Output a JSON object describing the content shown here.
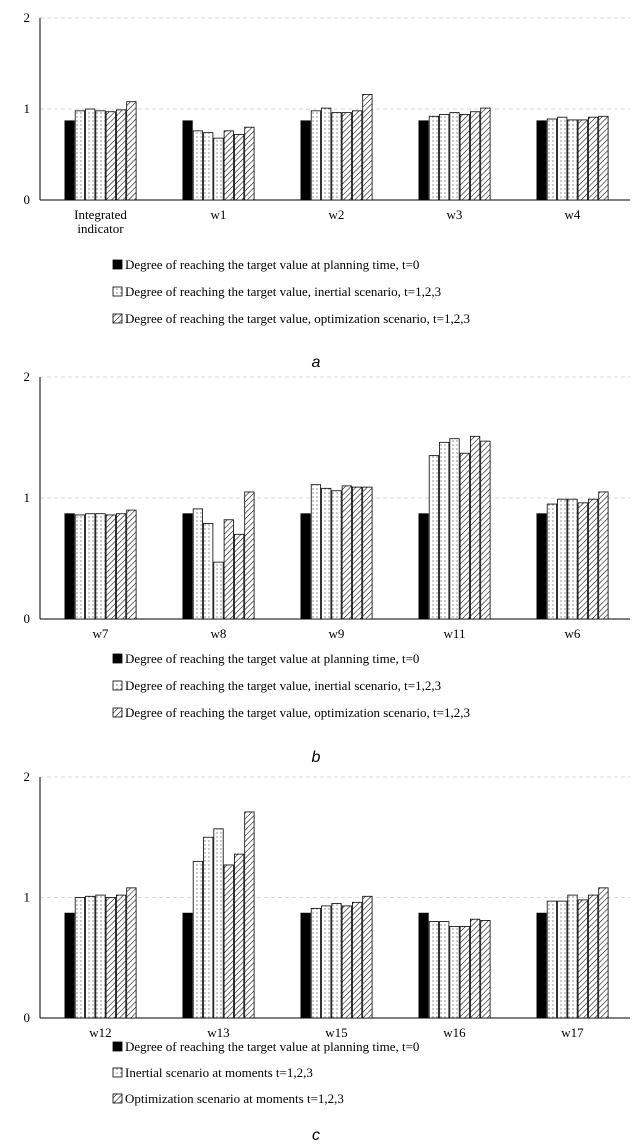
{
  "chart_data": [
    {
      "type": "bar",
      "panel_label": "a",
      "categories": [
        "Integrated indicator",
        "w1",
        "w2",
        "w3",
        "w4"
      ],
      "ylim": [
        0,
        2
      ],
      "yticks": [
        "0",
        "1",
        "2"
      ],
      "grid": true,
      "series": [
        {
          "name": "Degree of reaching the target value at planning time, t=0",
          "style": "solid",
          "values": [
            [
              0.87
            ],
            [
              0.87
            ],
            [
              0.87
            ],
            [
              0.87
            ],
            [
              0.87
            ]
          ]
        },
        {
          "name": "Degree of reaching the target value, inertial scenario,  t=1,2,3",
          "style": "dotted",
          "values": [
            [
              0.98,
              1.0,
              0.98
            ],
            [
              0.76,
              0.74,
              0.68
            ],
            [
              0.98,
              1.01,
              0.96
            ],
            [
              0.92,
              0.94,
              0.96
            ],
            [
              0.89,
              0.91,
              0.88
            ]
          ]
        },
        {
          "name": "Degree of reaching the target value, optimization scenario,  t=1,2,3",
          "style": "hatched",
          "values": [
            [
              0.97,
              0.99,
              1.08
            ],
            [
              0.76,
              0.72,
              0.8
            ],
            [
              0.96,
              0.98,
              1.16
            ],
            [
              0.94,
              0.97,
              1.01
            ],
            [
              0.88,
              0.91,
              0.92
            ]
          ]
        }
      ]
    },
    {
      "type": "bar",
      "panel_label": "b",
      "categories": [
        "w7",
        "w8",
        "w9",
        "w11",
        "w6"
      ],
      "ylim": [
        0,
        2
      ],
      "yticks": [
        "0",
        "1",
        "2"
      ],
      "grid": true,
      "series": [
        {
          "name": "Degree of reaching the target value at planning time, t=0",
          "style": "solid",
          "values": [
            [
              0.87
            ],
            [
              0.87
            ],
            [
              0.87
            ],
            [
              0.87
            ],
            [
              0.87
            ]
          ]
        },
        {
          "name": "Degree of reaching the target value, inertial scenario,  t=1,2,3",
          "style": "dotted",
          "values": [
            [
              0.86,
              0.87,
              0.87
            ],
            [
              0.91,
              0.79,
              0.47
            ],
            [
              1.11,
              1.08,
              1.06
            ],
            [
              1.35,
              1.46,
              1.49
            ],
            [
              0.95,
              0.99,
              0.99
            ]
          ]
        },
        {
          "name": "Degree of reaching the target value, optimization scenario,  t=1,2,3",
          "style": "hatched",
          "values": [
            [
              0.86,
              0.87,
              0.9
            ],
            [
              0.82,
              0.7,
              1.05
            ],
            [
              1.1,
              1.09,
              1.09
            ],
            [
              1.37,
              1.51,
              1.47
            ],
            [
              0.96,
              0.99,
              1.05
            ]
          ]
        }
      ]
    },
    {
      "type": "bar",
      "panel_label": "c",
      "categories": [
        "w12",
        "w13",
        "w15",
        "w16",
        "w17"
      ],
      "ylim": [
        0,
        2
      ],
      "yticks": [
        "0",
        "1",
        "2"
      ],
      "grid": true,
      "series": [
        {
          "name": "Degree of reaching the target value at planning time, t=0",
          "style": "solid",
          "values": [
            [
              0.87
            ],
            [
              0.87
            ],
            [
              0.87
            ],
            [
              0.87
            ],
            [
              0.87
            ]
          ]
        },
        {
          "name": "Inertial scenario at moments t=1,2,3",
          "style": "dotted",
          "values": [
            [
              1.0,
              1.01,
              1.02
            ],
            [
              1.3,
              1.5,
              1.57
            ],
            [
              0.91,
              0.93,
              0.95
            ],
            [
              0.8,
              0.8,
              0.76
            ],
            [
              0.97,
              0.97,
              1.02
            ]
          ]
        },
        {
          "name": "Optimization scenario at moments t=1,2,3",
          "style": "hatched",
          "values": [
            [
              1.0,
              1.02,
              1.08
            ],
            [
              1.27,
              1.36,
              1.71
            ],
            [
              0.93,
              0.96,
              1.01
            ],
            [
              0.76,
              0.82,
              0.81
            ],
            [
              0.98,
              1.02,
              1.08
            ]
          ]
        }
      ]
    }
  ]
}
